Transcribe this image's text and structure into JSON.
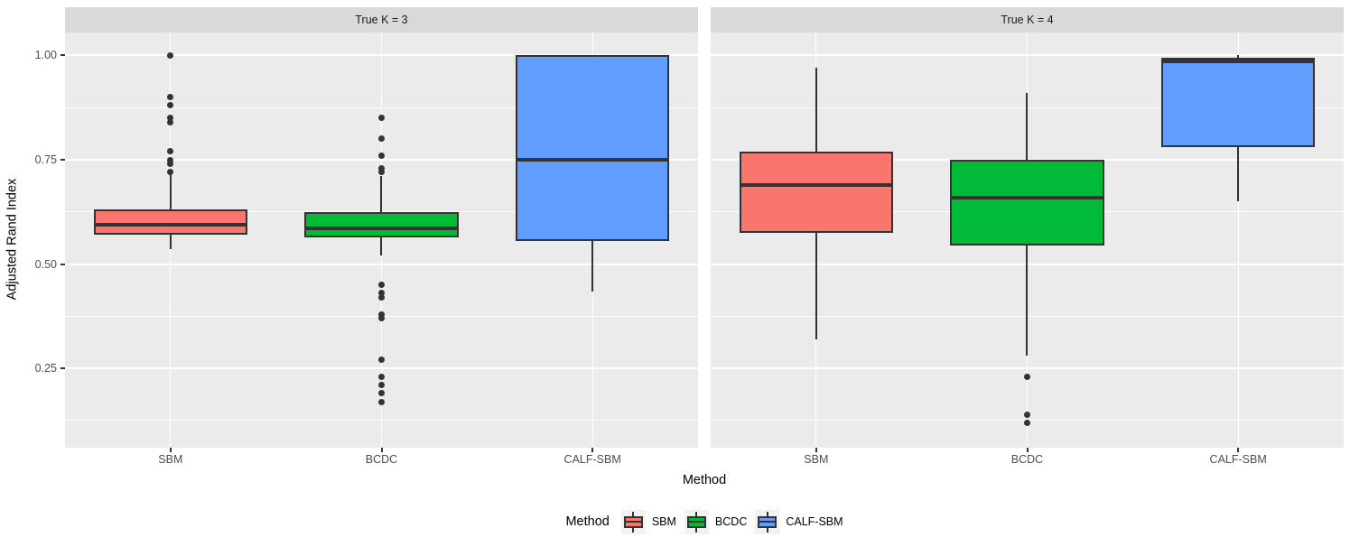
{
  "colors": {
    "panel_bg": "#EBEBEB",
    "strip_bg": "#D9D9D9",
    "grid": "#FFFFFF",
    "box_outline": "#333333",
    "axis_text": "#4D4D4D",
    "sbm": "#F8766D",
    "bcdc": "#00BA38",
    "calf_sbm": "#619CFF",
    "legend_key_bg": "#F2F2F2"
  },
  "axes": {
    "y_title": "Adjusted Rand Index",
    "x_title": "Method",
    "y_ticks": [
      1.0,
      0.75,
      0.5,
      0.25
    ],
    "y_tick_labels": [
      "1.00",
      "0.75",
      "0.50",
      "0.25"
    ],
    "y_minor": [
      0.875,
      0.625,
      0.375,
      0.125
    ],
    "y_domain": [
      0.06,
      1.055
    ],
    "x_categories": [
      "SBM",
      "BCDC",
      "CALF-SBM"
    ],
    "grid": "on"
  },
  "legend": {
    "title": "Method",
    "entries": [
      {
        "label": "SBM",
        "color": "#F8766D"
      },
      {
        "label": "BCDC",
        "color": "#00BA38"
      },
      {
        "label": "CALF-SBM",
        "color": "#619CFF"
      }
    ]
  },
  "chart_data": {
    "type": "boxplot",
    "ylabel": "Adjusted Rand Index",
    "xlabel": "Method",
    "ylim": [
      0.06,
      1.055
    ],
    "facets": [
      {
        "title": "True K = 3",
        "boxes": [
          {
            "method": "SBM",
            "color_key": "sbm",
            "whisker_low": 0.535,
            "q1": 0.57,
            "median": 0.595,
            "q3": 0.63,
            "whisker_high": 0.715,
            "outliers": [
              1.0,
              0.9,
              0.88,
              0.85,
              0.84,
              0.77,
              0.75,
              0.74,
              0.72
            ]
          },
          {
            "method": "BCDC",
            "color_key": "bcdc",
            "whisker_low": 0.52,
            "q1": 0.565,
            "median": 0.585,
            "q3": 0.625,
            "whisker_high": 0.71,
            "outliers": [
              0.85,
              0.8,
              0.76,
              0.73,
              0.72,
              0.45,
              0.43,
              0.42,
              0.38,
              0.37,
              0.27,
              0.23,
              0.21,
              0.19,
              0.17
            ]
          },
          {
            "method": "CALF-SBM",
            "color_key": "calf_sbm",
            "whisker_low": 0.435,
            "q1": 0.555,
            "median": 0.75,
            "q3": 1.0,
            "whisker_high": 1.0,
            "outliers": []
          }
        ]
      },
      {
        "title": "True K = 4",
        "boxes": [
          {
            "method": "SBM",
            "color_key": "sbm",
            "whisker_low": 0.32,
            "q1": 0.575,
            "median": 0.69,
            "q3": 0.77,
            "whisker_high": 0.97,
            "outliers": []
          },
          {
            "method": "BCDC",
            "color_key": "bcdc",
            "whisker_low": 0.28,
            "q1": 0.545,
            "median": 0.66,
            "q3": 0.75,
            "whisker_high": 0.91,
            "outliers": [
              0.23,
              0.14,
              0.12
            ]
          },
          {
            "method": "CALF-SBM",
            "color_key": "calf_sbm",
            "whisker_low": 0.65,
            "q1": 0.78,
            "median": 0.985,
            "q3": 0.995,
            "whisker_high": 1.0,
            "outliers": []
          }
        ]
      }
    ]
  }
}
